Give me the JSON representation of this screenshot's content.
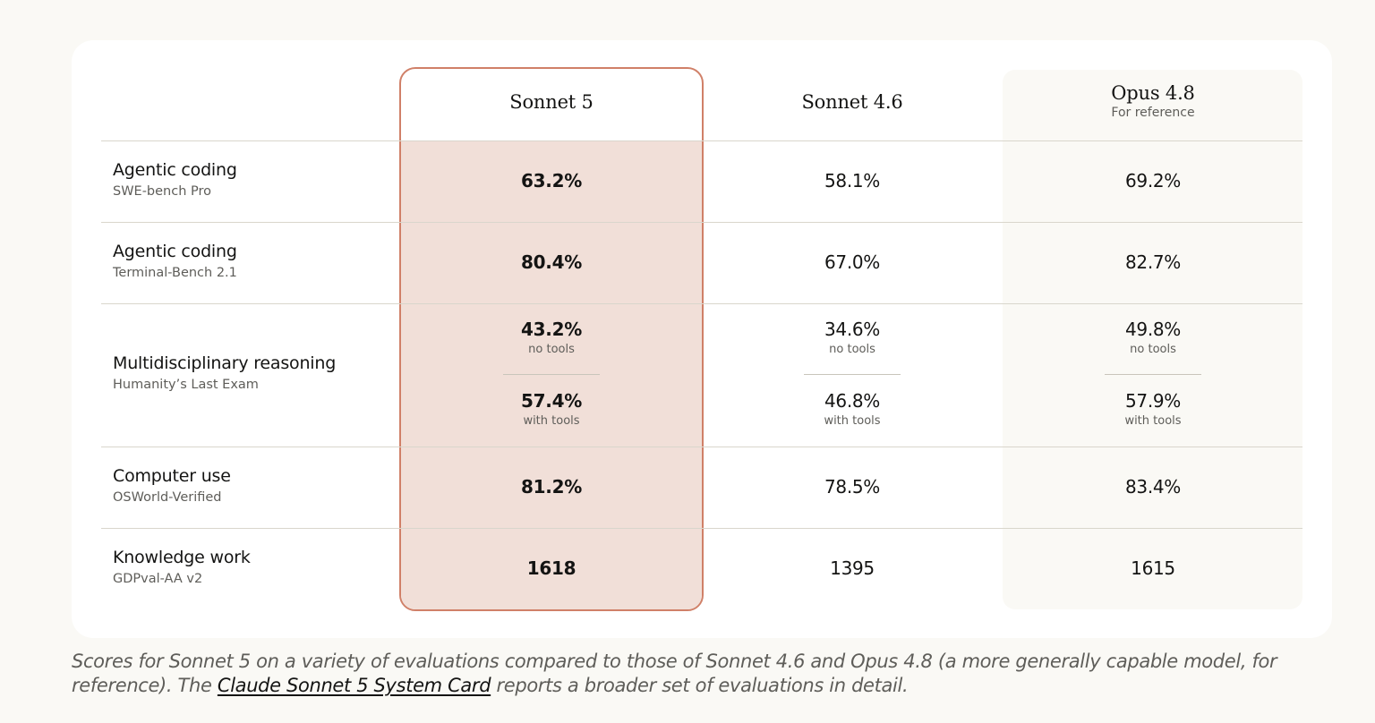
{
  "chart_data": {
    "type": "table",
    "columns": [
      {
        "name": "Sonnet 5",
        "subtitle": "",
        "highlighted": true
      },
      {
        "name": "Sonnet 4.6",
        "subtitle": ""
      },
      {
        "name": "Opus 4.8",
        "subtitle": "For reference"
      }
    ],
    "rows": [
      {
        "category": "Agentic coding",
        "benchmark": "SWE-bench Pro",
        "values": [
          "63.2%",
          "58.1%",
          "69.2%"
        ]
      },
      {
        "category": "Agentic coding",
        "benchmark": "Terminal-Bench 2.1",
        "values": [
          "80.4%",
          "67.0%",
          "82.7%"
        ]
      },
      {
        "category": "Multidisciplinary reasoning",
        "benchmark": "Humanity’s Last Exam",
        "values_no_tools": [
          "43.2%",
          "34.6%",
          "49.8%"
        ],
        "no_tools_label": "no tools",
        "values_with_tools": [
          "57.4%",
          "46.8%",
          "57.9%"
        ],
        "with_tools_label": "with tools"
      },
      {
        "category": "Computer use",
        "benchmark": "OSWorld-Verified",
        "values": [
          "81.2%",
          "78.5%",
          "83.4%"
        ]
      },
      {
        "category": "Knowledge work",
        "benchmark": "GDPval-AA v2",
        "values": [
          "1618",
          "1395",
          "1615"
        ]
      }
    ]
  },
  "caption": {
    "text_before": "Scores for Sonnet 5 on a variety of evaluations compared to those of Sonnet 4.6 and Opus 4.8 (a more generally capable model, for reference). The ",
    "link_text": "Claude Sonnet 5 System Card",
    "text_after": " reports a broader set of evaluations in detail."
  },
  "colors": {
    "highlight_border": "#d08068",
    "highlight_fill": "#f1dfd8",
    "page_bg": "#faf9f5",
    "card_bg": "#ffffff"
  }
}
